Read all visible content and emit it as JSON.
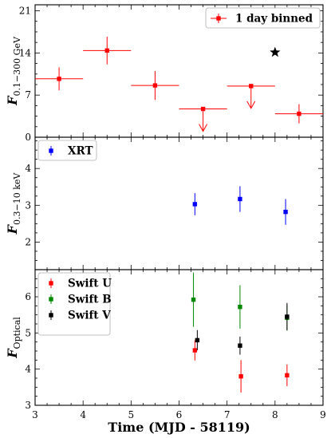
{
  "chart_data": [
    {
      "type": "scatter",
      "panel": "top",
      "ylabel_main": "F",
      "ylabel_sub": "0.1−300 GeV",
      "ylim": [
        0,
        22
      ],
      "yticks": [
        0,
        7,
        14,
        21
      ],
      "xlim": [
        3,
        9
      ],
      "legend": {
        "label": "1 day binned",
        "placement": "top-right"
      },
      "series": [
        {
          "name": "1 day binned",
          "color": "#ff0000",
          "points": [
            {
              "x": 3.5,
              "xerr": 0.5,
              "y": 9.7,
              "yerr": 1.9
            },
            {
              "x": 4.5,
              "xerr": 0.5,
              "y": 14.4,
              "yerr": 2.3
            },
            {
              "x": 5.5,
              "xerr": 0.5,
              "y": 8.6,
              "yerr": 2.4
            },
            {
              "x": 8.5,
              "xerr": 0.5,
              "y": 3.9,
              "yerr": 1.6
            }
          ],
          "upper_limits": [
            {
              "x": 6.5,
              "xerr": 0.5,
              "y": 4.7
            },
            {
              "x": 7.5,
              "xerr": 0.5,
              "y": 8.5
            }
          ]
        }
      ],
      "annotation": {
        "marker": "star",
        "x": 8.0,
        "y": 14.1,
        "color": "#000000"
      }
    },
    {
      "type": "scatter",
      "panel": "middle",
      "ylabel_main": "F",
      "ylabel_sub": "0.3−10 keV",
      "ylim": [
        1.25,
        4.85
      ],
      "yticks": [
        2,
        3,
        4
      ],
      "xlim": [
        3,
        9
      ],
      "legend": {
        "label": "XRT",
        "placement": "top-left"
      },
      "series": [
        {
          "name": "XRT",
          "color": "#0000ff",
          "points": [
            {
              "x": 6.33,
              "y": 3.03,
              "yerr": 0.3
            },
            {
              "x": 7.27,
              "y": 3.17,
              "yerr": 0.35
            },
            {
              "x": 8.22,
              "y": 2.82,
              "yerr": 0.35
            }
          ]
        }
      ]
    },
    {
      "type": "scatter",
      "panel": "bottom",
      "ylabel_main": "F",
      "ylabel_sub": "Optical",
      "ylim": [
        3.0,
        6.75
      ],
      "yticks": [
        3,
        4,
        5,
        6
      ],
      "xlim": [
        3,
        9
      ],
      "xticks": [
        3,
        4,
        5,
        6,
        7,
        8,
        9
      ],
      "xlabel": "Time (MJD - 58119)",
      "legend": {
        "placement": "top-left"
      },
      "series": [
        {
          "name": "Swift U",
          "color": "#ff0000",
          "points": [
            {
              "x": 6.33,
              "y": 4.52,
              "yerr": 0.28
            },
            {
              "x": 7.29,
              "y": 3.8,
              "yerr": 0.45
            },
            {
              "x": 8.25,
              "y": 3.83,
              "yerr": 0.3
            }
          ]
        },
        {
          "name": "Swift B",
          "color": "#008800",
          "points": [
            {
              "x": 6.3,
              "y": 5.92,
              "yerr": 0.75
            },
            {
              "x": 7.27,
              "y": 5.72,
              "yerr": 0.6
            },
            {
              "x": 8.25,
              "y": 5.42,
              "yerr": 0.35
            }
          ]
        },
        {
          "name": "Swift V",
          "color": "#000000",
          "points": [
            {
              "x": 6.38,
              "y": 4.8,
              "yerr": 0.28
            },
            {
              "x": 7.27,
              "y": 4.65,
              "yerr": 0.25
            },
            {
              "x": 8.25,
              "y": 5.45,
              "yerr": 0.38
            }
          ]
        }
      ]
    }
  ]
}
